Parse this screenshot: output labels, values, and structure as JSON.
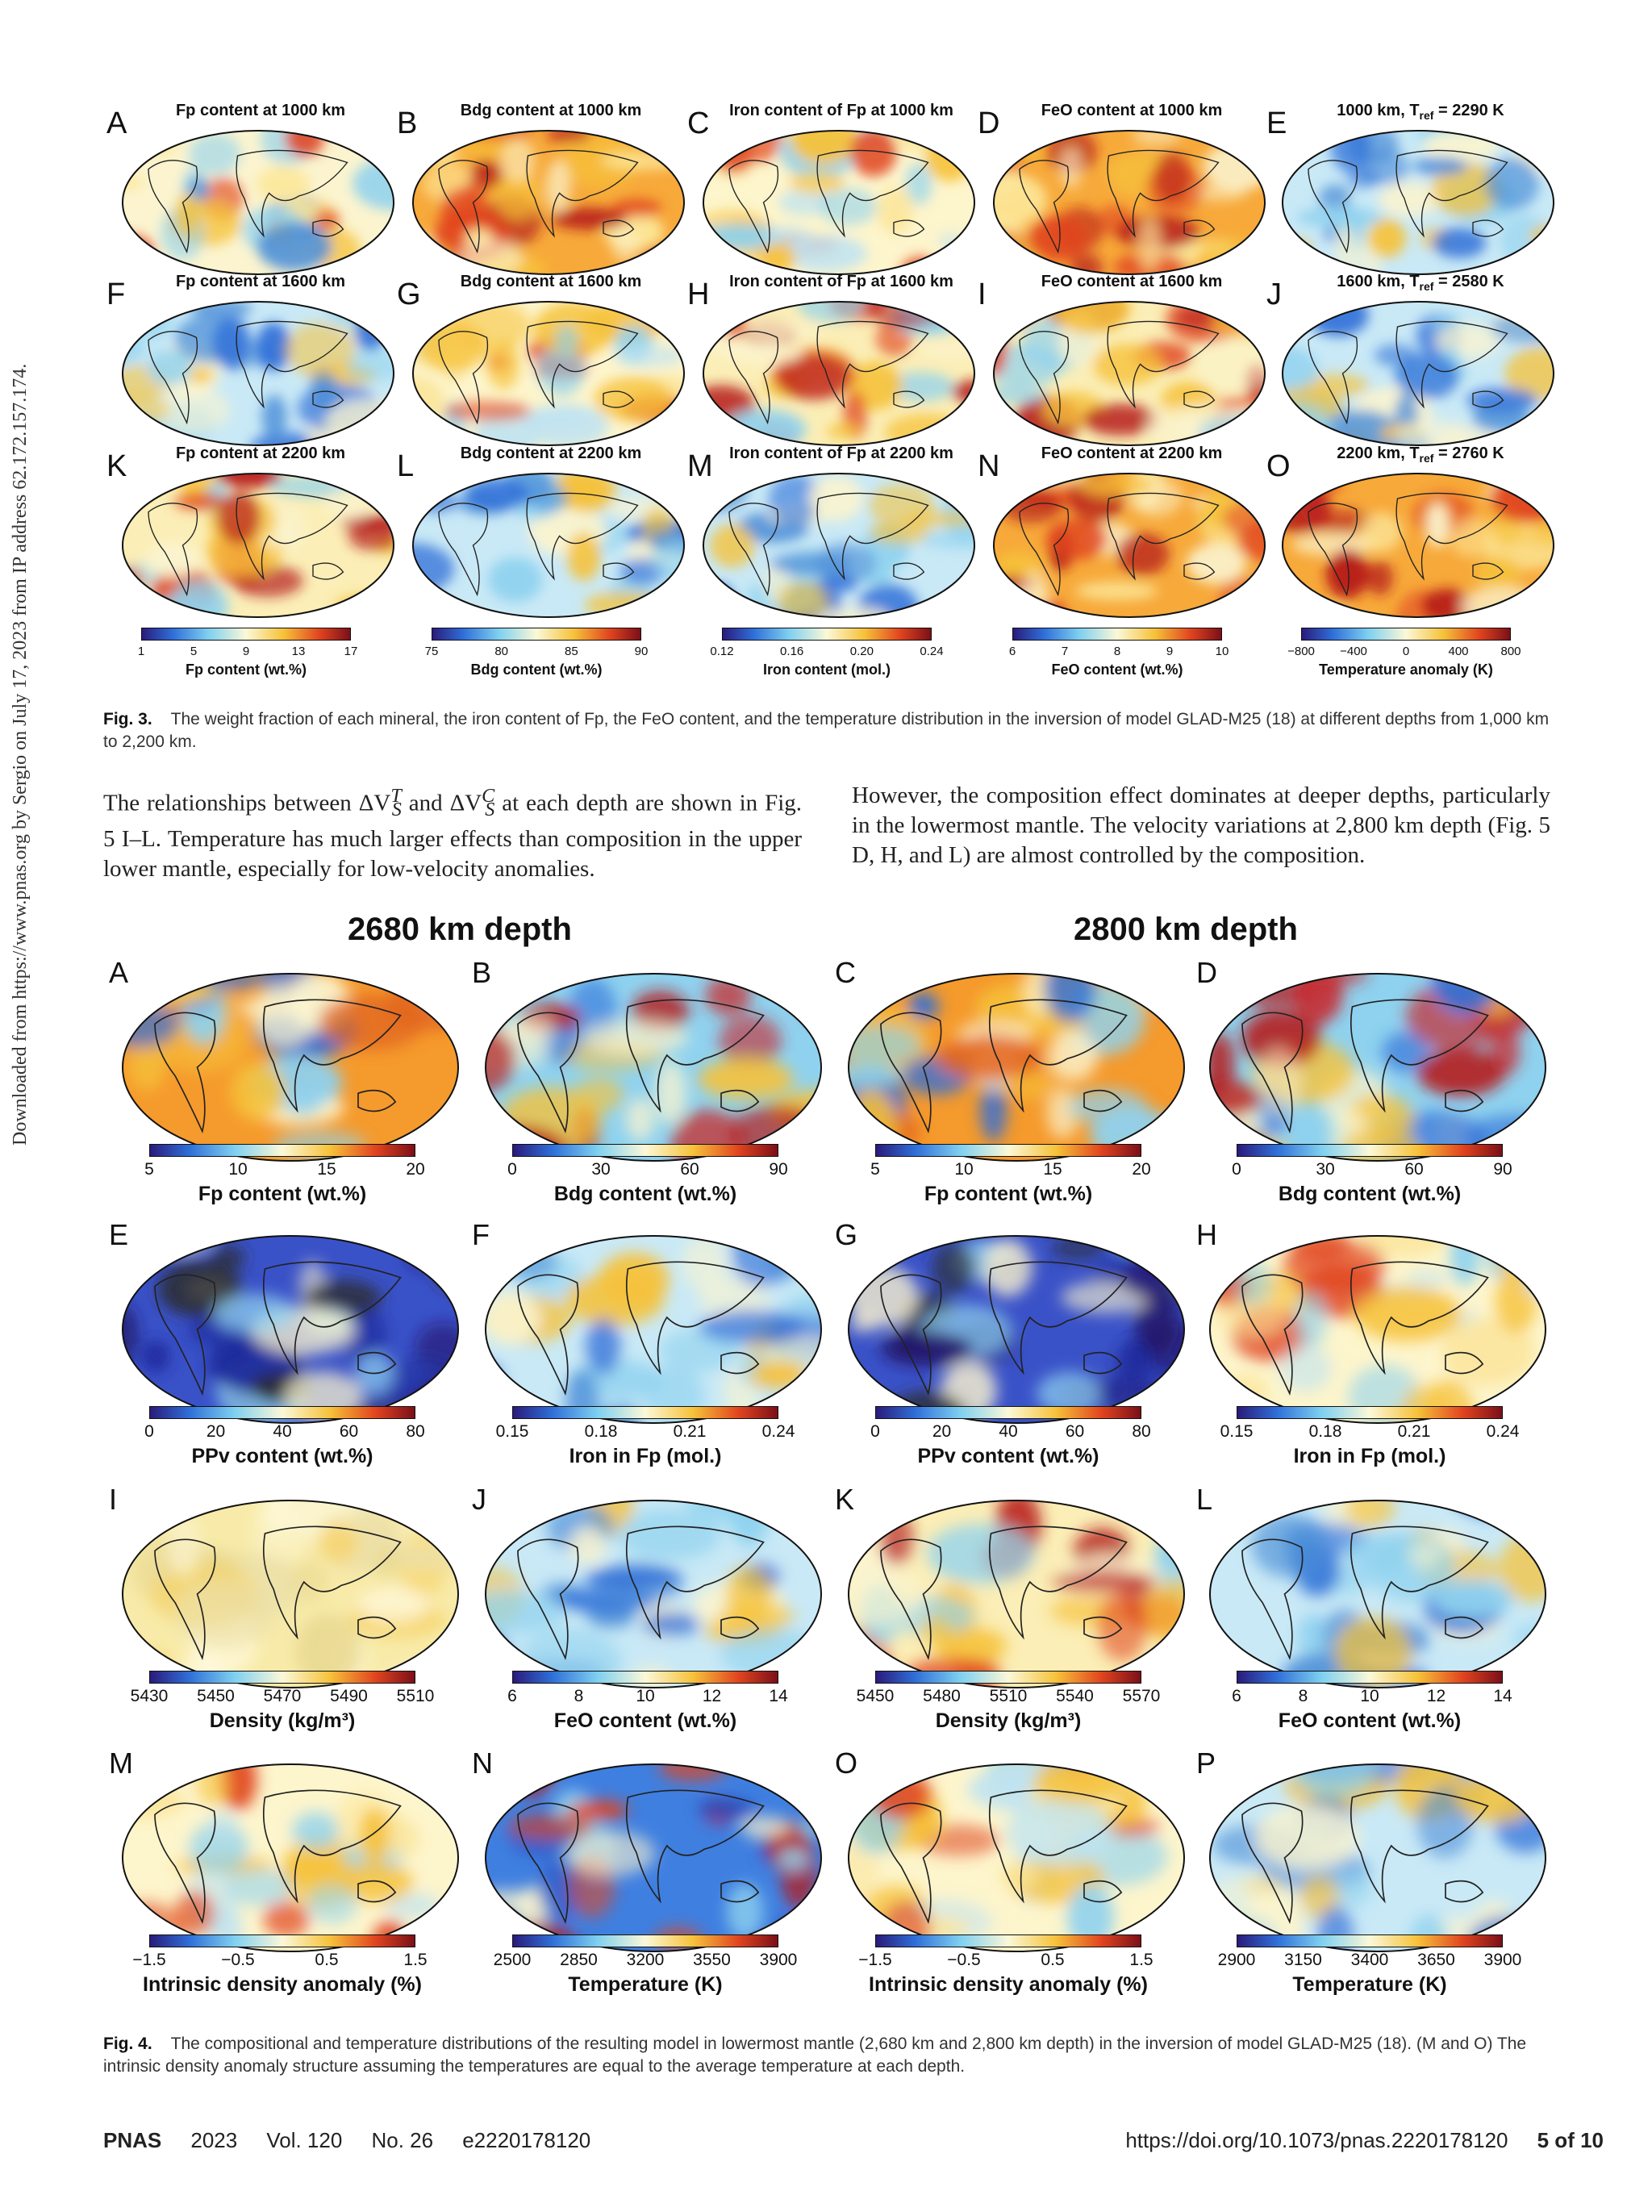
{
  "sidebar_text": "Downloaded from https://www.pnas.org by Sergio on July 17, 2023 from IP address 62.172.157.174.",
  "fig3": {
    "rows": [
      [
        {
          "letter": "A",
          "title": "Fp content at 1000 km",
          "pal": "fp"
        },
        {
          "letter": "B",
          "title": "Bdg content at 1000 km",
          "pal": "hot"
        },
        {
          "letter": "C",
          "title": "Iron content of Fp at 1000 km",
          "pal": "pale"
        },
        {
          "letter": "D",
          "title": "FeO content at 1000 km",
          "pal": "hot"
        },
        {
          "letter": "E",
          "title": "1000 km, T",
          "title_sub": "ref",
          "title_tail": " = 2290 K",
          "pal": "cool"
        }
      ],
      [
        {
          "letter": "F",
          "title": "Fp content at 1600 km",
          "pal": "cool"
        },
        {
          "letter": "G",
          "title": "Bdg content at 1600 km",
          "pal": "pale"
        },
        {
          "letter": "H",
          "title": "Iron content of Fp at 1600 km",
          "pal": "mix"
        },
        {
          "letter": "I",
          "title": "FeO content at 1600 km",
          "pal": "mix"
        },
        {
          "letter": "J",
          "title": "1600 km, T",
          "title_sub": "ref",
          "title_tail": " = 2580 K",
          "pal": "cool"
        }
      ],
      [
        {
          "letter": "K",
          "title": "Fp content at 2200 km",
          "pal": "mix"
        },
        {
          "letter": "L",
          "title": "Bdg content at 2200 km",
          "pal": "cool"
        },
        {
          "letter": "M",
          "title": "Iron content of Fp at 2200 km",
          "pal": "cool"
        },
        {
          "letter": "N",
          "title": "FeO content at 2200 km",
          "pal": "hot"
        },
        {
          "letter": "O",
          "title": "2200 km, T",
          "title_sub": "ref",
          "title_tail": " = 2760 K",
          "pal": "hot"
        }
      ]
    ],
    "colorbars": [
      {
        "ticks": [
          "1",
          "5",
          "9",
          "13",
          "17"
        ],
        "label": "Fp content (wt.%)"
      },
      {
        "ticks": [
          "75",
          "80",
          "85",
          "90"
        ],
        "label": "Bdg content (wt.%)"
      },
      {
        "ticks": [
          "0.12",
          "0.16",
          "0.20",
          "0.24"
        ],
        "label": "Iron content (mol.)"
      },
      {
        "ticks": [
          "6",
          "7",
          "8",
          "9",
          "10"
        ],
        "label": "FeO content (wt.%)"
      },
      {
        "ticks": [
          "−800",
          "−400",
          "0",
          "400",
          "800"
        ],
        "label": "Temperature anomaly (K)"
      }
    ],
    "caption_label": "Fig. 3.",
    "caption": "The weight fraction of each mineral, the iron content of Fp, the FeO content, and the temperature distribution in the inversion of model GLAD-M25 (18) at different depths from 1,000 km to 2,200 km."
  },
  "body": {
    "left": "The relationships between ΔV",
    "left_sup1": "T",
    "left_sub1": "S",
    "left_mid": " and ΔV",
    "left_sup2": "C",
    "left_sub2": "S",
    "left_tail": " at each depth are shown in Fig. 5 I–L. Temperature has much larger effects than composition in the upper lower mantle, especially for low-velocity anomalies.",
    "right": "However, the composition effect dominates at deeper depths, particularly in the lowermost mantle. The velocity variations at 2,800 km depth (Fig. 5 D, H, and L) are almost controlled by the composition."
  },
  "fig4": {
    "heading_left": "2680 km depth",
    "heading_right": "2800 km depth",
    "rows": [
      [
        {
          "letter": "A",
          "pal": "orange",
          "ticks": [
            "5",
            "10",
            "15",
            "20"
          ],
          "label": "Fp content (wt.%)"
        },
        {
          "letter": "B",
          "pal": "redblue",
          "ticks": [
            "0",
            "30",
            "60",
            "90"
          ],
          "label": "Bdg content (wt.%)"
        },
        {
          "letter": "C",
          "pal": "orange",
          "ticks": [
            "5",
            "10",
            "15",
            "20"
          ],
          "label": "Fp content (wt.%)"
        },
        {
          "letter": "D",
          "pal": "redblue",
          "ticks": [
            "0",
            "30",
            "60",
            "90"
          ],
          "label": "Bdg content (wt.%)"
        }
      ],
      [
        {
          "letter": "E",
          "pal": "dark",
          "ticks": [
            "0",
            "20",
            "40",
            "60",
            "80"
          ],
          "label": "PPv content (wt.%)"
        },
        {
          "letter": "F",
          "pal": "cool",
          "ticks": [
            "0.15",
            "0.18",
            "0.21",
            "0.24"
          ],
          "label": "Iron in Fp (mol.)"
        },
        {
          "letter": "G",
          "pal": "dark",
          "ticks": [
            "0",
            "20",
            "40",
            "60",
            "80"
          ],
          "label": "PPv content (wt.%)"
        },
        {
          "letter": "H",
          "pal": "pale",
          "ticks": [
            "0.15",
            "0.18",
            "0.21",
            "0.24"
          ],
          "label": "Iron in Fp (mol.)"
        }
      ],
      [
        {
          "letter": "I",
          "pal": "yellow",
          "ticks": [
            "5430",
            "5450",
            "5470",
            "5490",
            "5510"
          ],
          "label": "Density (kg/m³)"
        },
        {
          "letter": "J",
          "pal": "cool",
          "ticks": [
            "6",
            "8",
            "10",
            "12",
            "14"
          ],
          "label": "FeO content (wt.%)"
        },
        {
          "letter": "K",
          "pal": "mix",
          "ticks": [
            "5450",
            "5480",
            "5510",
            "5540",
            "5570"
          ],
          "label": "Density (kg/m³)"
        },
        {
          "letter": "L",
          "pal": "cool",
          "ticks": [
            "6",
            "8",
            "10",
            "12",
            "14"
          ],
          "label": "FeO content (wt.%)"
        }
      ],
      [
        {
          "letter": "M",
          "pal": "pale",
          "ticks": [
            "−1.5",
            "−0.5",
            "0.5",
            "1.5"
          ],
          "label": "Intrinsic density anomaly (%)"
        },
        {
          "letter": "N",
          "pal": "blue",
          "ticks": [
            "2500",
            "2850",
            "3200",
            "3550",
            "3900"
          ],
          "label": "Temperature (K)"
        },
        {
          "letter": "O",
          "pal": "pale",
          "ticks": [
            "−1.5",
            "−0.5",
            "0.5",
            "1.5"
          ],
          "label": "Intrinsic density anomaly (%)"
        },
        {
          "letter": "P",
          "pal": "cool",
          "ticks": [
            "2900",
            "3150",
            "3400",
            "3650",
            "3900"
          ],
          "label": "Temperature (K)"
        }
      ]
    ],
    "caption_label": "Fig. 4.",
    "caption": "The compositional and temperature distributions of the resulting model in lowermost mantle (2,680 km and 2,800 km depth) in the inversion of model GLAD-M25 (18). (M and O) The intrinsic density anomaly structure assuming the temperatures are equal to the average temperature at each depth."
  },
  "footer": {
    "journal": "PNAS",
    "year": "2023",
    "volume": "Vol. 120",
    "number": "No. 26",
    "article": "e2220178120",
    "doi": "https://doi.org/10.1073/pnas.2220178120",
    "page": "5 of 10"
  }
}
